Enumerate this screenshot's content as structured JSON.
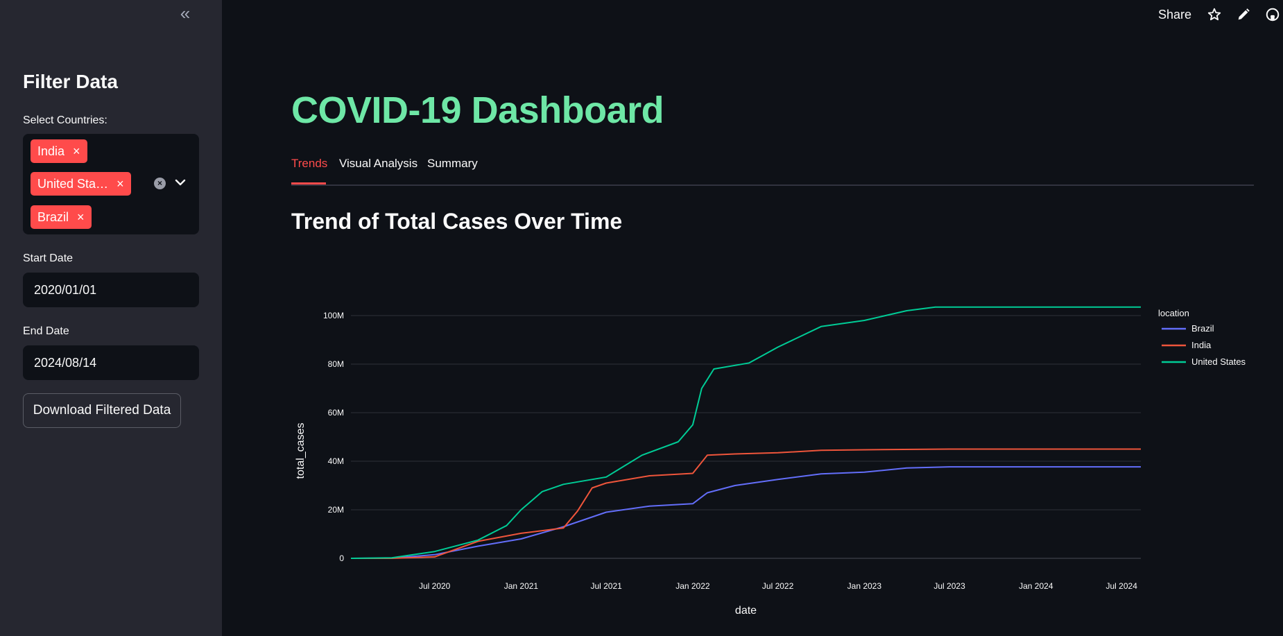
{
  "sidebar": {
    "collapse_icon": "double-chevron-left-icon",
    "title": "Filter Data",
    "countries_label": "Select Countries:",
    "selected_countries": [
      "India",
      "United Sta…",
      "Brazil"
    ],
    "start_date_label": "Start Date",
    "start_date_value": "2020/01/01",
    "end_date_label": "End Date",
    "end_date_value": "2024/08/14",
    "download_label": "Download Filtered Data"
  },
  "header": {
    "share_label": "Share",
    "icons": [
      "star-icon",
      "pencil-icon",
      "github-icon"
    ]
  },
  "main": {
    "title": "COVID-19 Dashboard",
    "tabs": [
      {
        "label": "Trends",
        "active": true
      },
      {
        "label": "Visual Analysis",
        "active": false
      },
      {
        "label": "Summary",
        "active": false
      }
    ],
    "section_title": "Trend of Total Cases Over Time"
  },
  "colors": {
    "accent": "#ff4b4b",
    "title_green": "#6ee7a6",
    "brazil": "#636efa",
    "india": "#ef553b",
    "united_states": "#00cc96"
  },
  "chart_data": {
    "type": "line",
    "xlabel": "date",
    "ylabel": "total_cases",
    "legend_title": "location",
    "legend_position": "top-right",
    "grid": true,
    "xlim": [
      "2020-01-05",
      "2024-08-11"
    ],
    "ylim": [
      0,
      110000000
    ],
    "x_ticks": [
      "Jul 2020",
      "Jan 2021",
      "Jul 2021",
      "Jan 2022",
      "Jul 2022",
      "Jan 2023",
      "Jul 2023",
      "Jan 2024",
      "Jul 2024"
    ],
    "x_tick_dates": [
      "2020-07-01",
      "2021-01-01",
      "2021-07-01",
      "2022-01-01",
      "2022-07-01",
      "2023-01-01",
      "2023-07-01",
      "2024-01-01",
      "2024-07-01"
    ],
    "y_ticks": [
      "0",
      "20M",
      "40M",
      "60M",
      "80M",
      "100M"
    ],
    "y_tick_values": [
      0,
      20000000,
      40000000,
      60000000,
      80000000,
      100000000
    ],
    "series": [
      {
        "name": "Brazil",
        "color": "#636efa",
        "x": [
          "2020-01-05",
          "2020-04-01",
          "2020-07-01",
          "2020-10-01",
          "2021-01-01",
          "2021-04-01",
          "2021-07-01",
          "2021-10-01",
          "2022-01-01",
          "2022-02-01",
          "2022-04-01",
          "2022-07-01",
          "2022-10-01",
          "2023-01-01",
          "2023-04-01",
          "2023-07-01",
          "2024-01-01",
          "2024-08-11"
        ],
        "values": [
          0,
          50000,
          1500000,
          5000000,
          8000000,
          13000000,
          19000000,
          21500000,
          22500000,
          27000000,
          30000000,
          32500000,
          34800000,
          35500000,
          37200000,
          37700000,
          37700000,
          37700000
        ]
      },
      {
        "name": "India",
        "color": "#ef553b",
        "x": [
          "2020-01-05",
          "2020-04-01",
          "2020-07-01",
          "2020-10-01",
          "2021-01-01",
          "2021-04-01",
          "2021-05-01",
          "2021-06-01",
          "2021-07-01",
          "2021-10-01",
          "2022-01-01",
          "2022-02-01",
          "2022-04-01",
          "2022-07-01",
          "2022-10-01",
          "2023-01-01",
          "2023-07-01",
          "2024-08-11"
        ],
        "values": [
          0,
          5000,
          600000,
          7000000,
          10300000,
          12500000,
          19500000,
          29000000,
          31000000,
          34000000,
          35000000,
          42500000,
          43000000,
          43500000,
          44500000,
          44700000,
          45000000,
          45000000
        ]
      },
      {
        "name": "United States",
        "color": "#00cc96",
        "x": [
          "2020-01-05",
          "2020-04-01",
          "2020-07-01",
          "2020-10-01",
          "2020-12-01",
          "2021-01-01",
          "2021-02-15",
          "2021-04-01",
          "2021-07-01",
          "2021-09-15",
          "2021-12-01",
          "2022-01-01",
          "2022-01-20",
          "2022-02-15",
          "2022-05-01",
          "2022-07-01",
          "2022-10-01",
          "2023-01-01",
          "2023-04-01",
          "2023-06-01",
          "2024-08-11"
        ],
        "values": [
          0,
          200000,
          2800000,
          7500000,
          13500000,
          20000000,
          27500000,
          30500000,
          33500000,
          42500000,
          48000000,
          55000000,
          70000000,
          78000000,
          80500000,
          87000000,
          95500000,
          98000000,
          102000000,
          103500000,
          103500000
        ]
      }
    ]
  }
}
